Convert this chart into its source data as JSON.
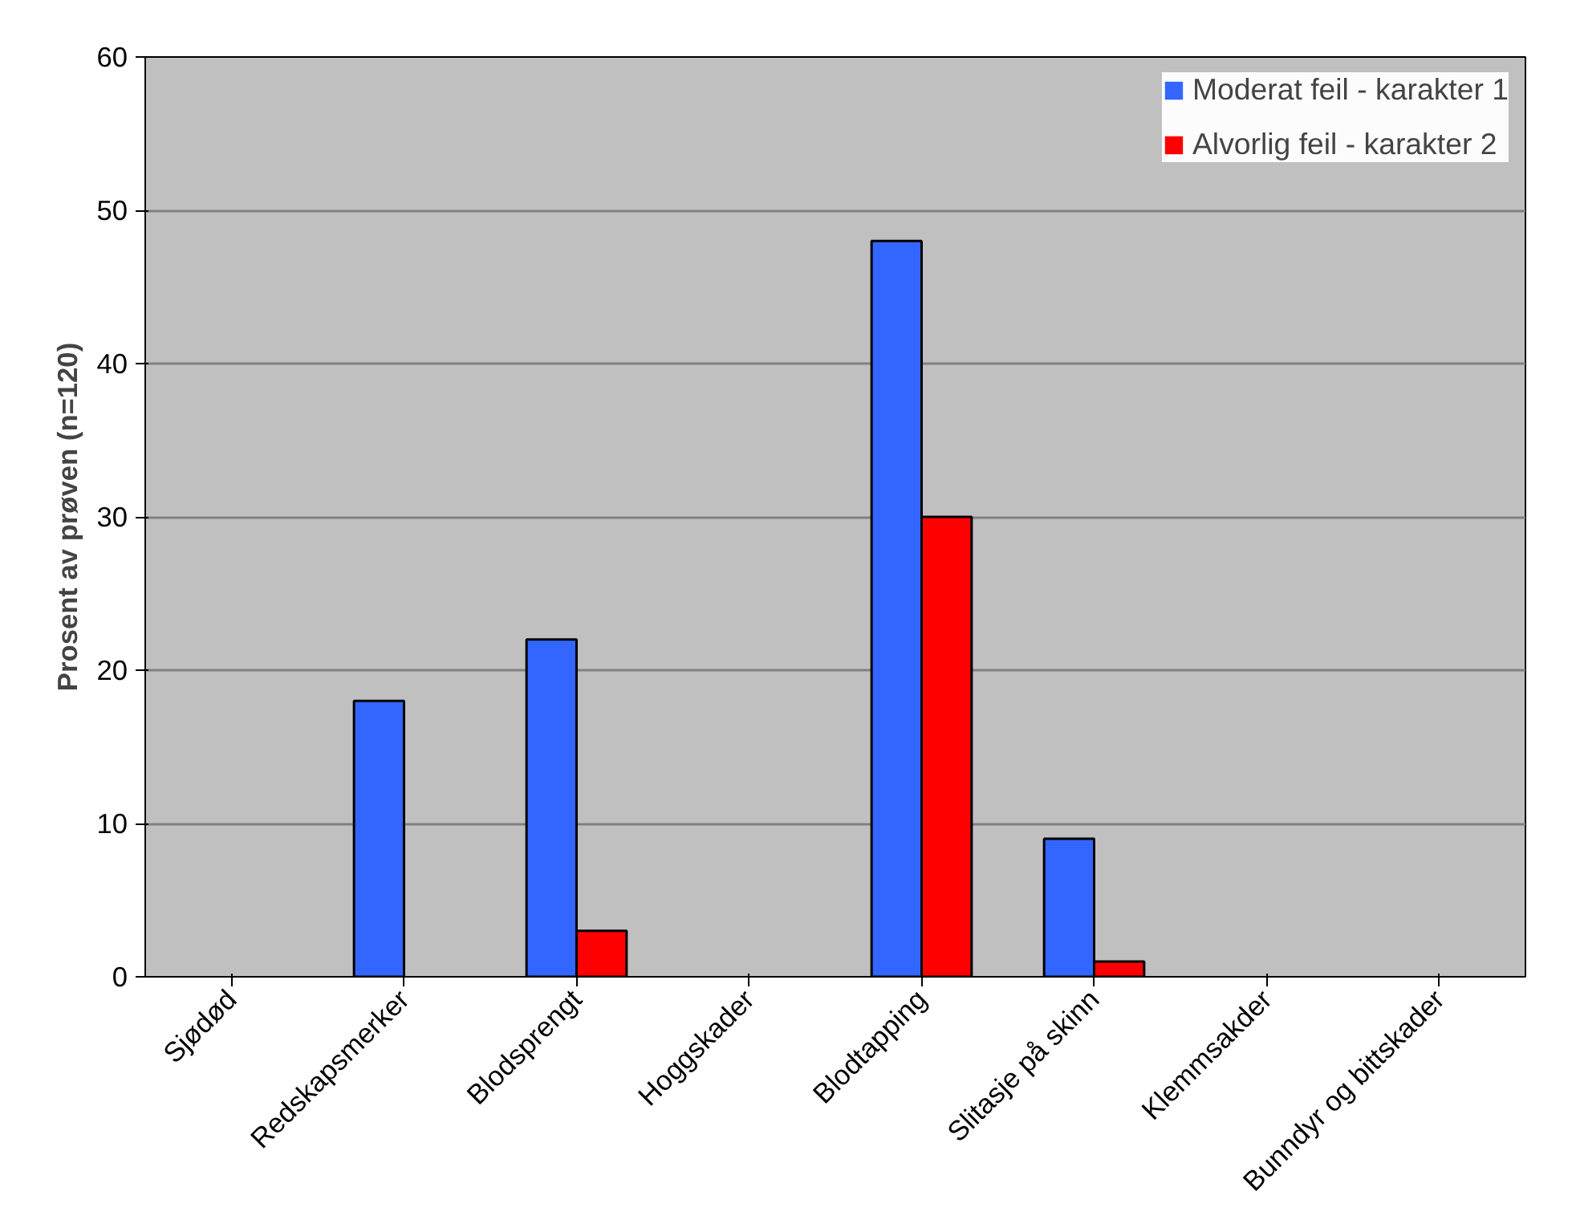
{
  "chart_data": {
    "type": "bar",
    "ylabel": "Prosent av prøven (n=120)",
    "categories": [
      "Sjødød",
      "Redskapsmerker",
      "Blodsprengt",
      "Hoggskader",
      "Blodtapping",
      "Slitasje på skinn",
      "Klemmsakder",
      "Bunndyr og bittskader"
    ],
    "series": [
      {
        "name": "Moderat feil - karakter 1",
        "color": "#3366ff",
        "values": [
          0,
          18,
          22,
          0,
          48,
          9,
          0,
          0
        ]
      },
      {
        "name": "Alvorlig feil - karakter 2",
        "color": "#ff0000",
        "values": [
          0,
          0,
          3,
          0,
          30,
          1,
          0,
          0
        ]
      }
    ],
    "ylim": [
      0,
      60
    ],
    "yticks": [
      0,
      10,
      20,
      30,
      40,
      50,
      60
    ],
    "grid": "y",
    "legend": "top right"
  }
}
